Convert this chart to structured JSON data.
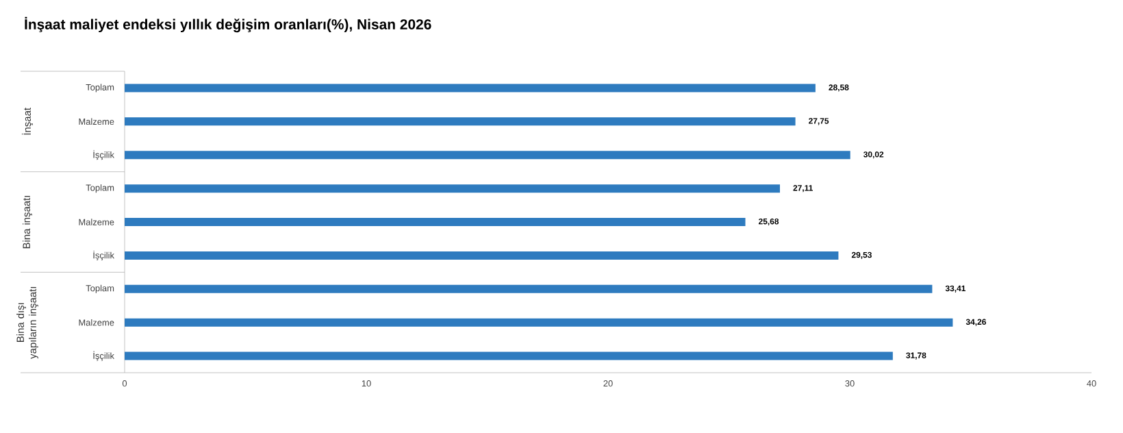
{
  "chart_data": {
    "type": "bar",
    "orientation": "horizontal",
    "title": "İnşaat maliyet endeksi yıllık değişim oranları(%), Nisan 2026",
    "categories": [
      "Toplam",
      "Malzeme",
      "İşçilik",
      "Toplam",
      "Malzeme",
      "İşçilik",
      "Toplam",
      "Malzeme",
      "İşçilik"
    ],
    "values": [
      28.58,
      27.75,
      30.02,
      27.11,
      25.68,
      29.53,
      33.41,
      34.26,
      31.78
    ],
    "value_labels": [
      "28,58",
      "27,75",
      "30,02",
      "27,11",
      "25,68",
      "29,53",
      "33,41",
      "34,26",
      "31,78"
    ],
    "color": "#2e7bbf",
    "xlim": [
      0,
      40
    ],
    "xticks": [
      0,
      10,
      20,
      30,
      40
    ],
    "annotations": [
      "İnşaat",
      "Bina inşaatı",
      "Bina dışı yapıların inşaatı"
    ],
    "grid": false
  }
}
